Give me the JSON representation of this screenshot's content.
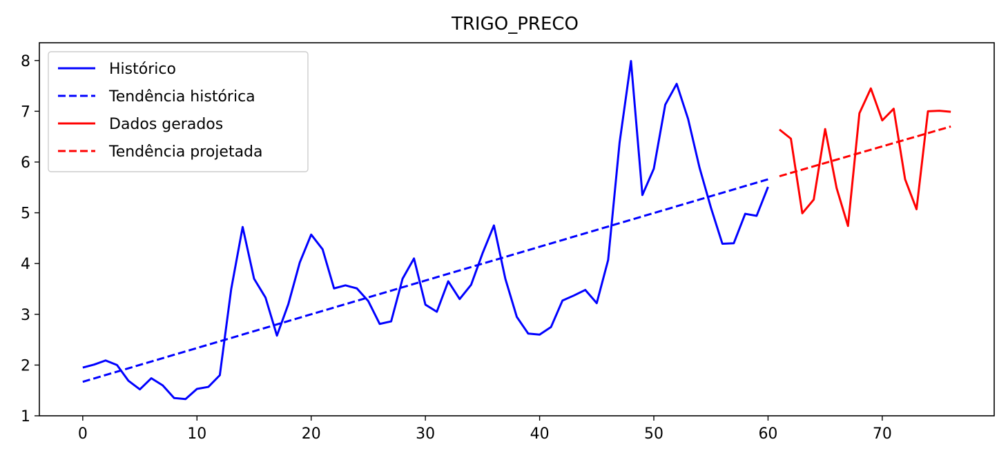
{
  "chart_data": {
    "type": "line",
    "title": "TRIGO_PRECO",
    "xlabel": "",
    "ylabel": "",
    "xlim": [
      -3.8,
      79.8
    ],
    "ylim": [
      1,
      8.35
    ],
    "xticks": [
      0,
      10,
      20,
      30,
      40,
      50,
      60,
      70
    ],
    "yticks": [
      1,
      2,
      3,
      4,
      5,
      6,
      7,
      8
    ],
    "grid": false,
    "legend_position": "top-left",
    "series": [
      {
        "name": "Histórico",
        "color": "#0000ff",
        "style": "solid",
        "x": [
          0,
          1,
          2,
          3,
          4,
          5,
          6,
          7,
          8,
          9,
          10,
          11,
          12,
          13,
          14,
          15,
          16,
          17,
          18,
          19,
          20,
          21,
          22,
          23,
          24,
          25,
          26,
          27,
          28,
          29,
          30,
          31,
          32,
          33,
          34,
          35,
          36,
          37,
          38,
          39,
          40,
          41,
          42,
          43,
          44,
          45,
          46,
          47,
          48,
          49,
          50,
          51,
          52,
          53,
          54,
          55,
          56,
          57,
          58,
          59,
          60
        ],
        "values": [
          1.95,
          2.01,
          2.09,
          2.0,
          1.69,
          1.52,
          1.74,
          1.6,
          1.35,
          1.33,
          1.53,
          1.57,
          1.8,
          3.5,
          4.72,
          3.7,
          3.33,
          2.58,
          3.2,
          4.02,
          4.57,
          4.28,
          3.51,
          3.57,
          3.51,
          3.26,
          2.81,
          2.86,
          3.7,
          4.1,
          3.19,
          3.05,
          3.65,
          3.3,
          3.58,
          4.2,
          4.75,
          3.7,
          2.95,
          2.62,
          2.6,
          2.75,
          3.27,
          3.37,
          3.48,
          3.22,
          4.07,
          6.38,
          7.99,
          5.35,
          5.87,
          7.13,
          7.54,
          6.85,
          5.89,
          5.1,
          4.39,
          4.4,
          4.98,
          4.94,
          5.51
        ]
      },
      {
        "name": "Tendência histórica",
        "color": "#0000ff",
        "style": "dashed",
        "x": [
          0,
          60
        ],
        "values": [
          1.67,
          5.66
        ]
      },
      {
        "name": "Dados gerados",
        "color": "#ff0000",
        "style": "solid",
        "x": [
          61,
          62,
          63,
          64,
          65,
          66,
          67,
          68,
          69,
          70,
          71,
          72,
          73,
          74,
          75,
          76
        ],
        "values": [
          6.64,
          6.46,
          4.99,
          5.26,
          6.65,
          5.49,
          4.74,
          6.96,
          7.45,
          6.82,
          7.05,
          5.66,
          5.07,
          7.0,
          7.01,
          6.99
        ]
      },
      {
        "name": "Tendência projetada",
        "color": "#ff0000",
        "style": "dashed",
        "x": [
          61,
          76
        ],
        "values": [
          5.72,
          6.7
        ]
      }
    ]
  }
}
